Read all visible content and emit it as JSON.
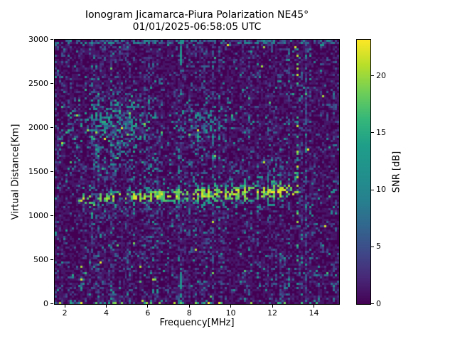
{
  "chart_data": {
    "type": "heatmap",
    "title": "Ionogram Jicamarca-Piura Polarization NE45°",
    "subtitle": "01/01/2025-06:58:05 UTC",
    "xlabel": "Frequency[MHz]",
    "ylabel": "Virtual Distance[Km]",
    "colorbar_label": "SNR [dB]",
    "xlim": [
      1.5,
      15.2
    ],
    "ylim": [
      0,
      3000
    ],
    "snr_min": 0,
    "snr_max": 23.2,
    "xticks": [
      2,
      4,
      6,
      8,
      10,
      12,
      14
    ],
    "yticks": [
      0,
      500,
      1000,
      1500,
      2000,
      2500,
      3000
    ],
    "colorbar_ticks": [
      0,
      5,
      10,
      15,
      20
    ],
    "grid_cols": 134,
    "grid_rows": 124,
    "seed": 42,
    "legend_position": "right-colorbar",
    "grid_lines": false,
    "colors": {
      "background": "#ffffff",
      "text": "#000000",
      "axes": "#000000",
      "noise_floor": "#440154"
    },
    "colormap": {
      "name": "viridis",
      "stops": [
        [
          0.0,
          "#440154"
        ],
        [
          0.1,
          "#482878"
        ],
        [
          0.2,
          "#3e4a89"
        ],
        [
          0.3,
          "#31688e"
        ],
        [
          0.4,
          "#26828e"
        ],
        [
          0.5,
          "#21918c"
        ],
        [
          0.6,
          "#1f9e89"
        ],
        [
          0.7,
          "#35b779"
        ],
        [
          0.8,
          "#6ece58"
        ],
        [
          0.9,
          "#b5de2b"
        ],
        [
          1.0,
          "#fde725"
        ]
      ]
    },
    "features": {
      "noise": {
        "floor_max": 1.6,
        "p_speckle": 0.3,
        "speckle_max": 6.5,
        "p_teal": 0.045,
        "teal_min": 6,
        "teal_max": 13,
        "p_bright": 0.0035,
        "bright_min": 13,
        "bright_max": 23,
        "p_strong_column": 0.07,
        "strong_factor": 1.9,
        "p_quiet_column": 0.1,
        "quiet_factor": 0.35
      },
      "echo_band": {
        "f_start": 2.55,
        "f_end": 13.3,
        "center_km_at_3mhz": 1195,
        "center_slope_km_per_mhz": 9,
        "sigma_km_at_3mhz": 42,
        "sigma_slope_km_per_mhz": 5,
        "peak_snr": 23.2,
        "gap_probability": 0.12,
        "gap_attenuation": 0.12,
        "low_f_taper_below_mhz": 3.0,
        "low_f_factor": 0.6,
        "high_f_taper_above_mhz": 12.4,
        "high_f_factor": 0.55,
        "halo_km": 380,
        "halo_p": 0.1,
        "halo_snr_min": 4,
        "halo_snr_max": 12
      },
      "scatter_blobs": [
        {
          "f_center": 4.3,
          "f_sigma": 1.05,
          "h_center": 2025,
          "h_sigma": 185,
          "max_p": 0.5,
          "snr_min": 5,
          "snr_max": 16,
          "p_hot": 0.02
        },
        {
          "f_center": 8.7,
          "f_sigma": 0.8,
          "h_center": 2050,
          "h_sigma": 150,
          "max_p": 0.26,
          "snr_min": 5,
          "snr_max": 14,
          "p_hot": 0.008
        }
      ],
      "top_edge": {
        "depth_km": 55,
        "p": 0.5,
        "snr_min": 2,
        "snr_max": 12
      },
      "bottom_edge": {
        "depth_km": 26,
        "p": 0.24,
        "snr_min": 7,
        "snr_max": 23
      },
      "vertical_line": {
        "freq_mhz": 7.62,
        "h_bottom_max_km": 420,
        "h_top_min_km": 2720,
        "p": 0.85,
        "snr_min": 9,
        "snr_max": 13
      },
      "rfi_column": {
        "freq_mhz": 13.25,
        "p": 0.28,
        "snr_min": 8,
        "snr_max": 22
      }
    }
  }
}
